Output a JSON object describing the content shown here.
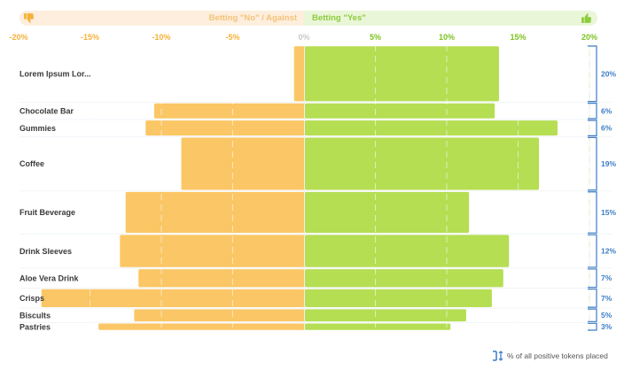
{
  "banner": {
    "against_label": "Betting \"No\" / Against",
    "for_label": "Betting \"Yes\""
  },
  "legend": {
    "label": "% of all positive tokens  placed"
  },
  "colors": {
    "against": "#fbc665",
    "for": "#b5de53",
    "share": "#3c7dc6",
    "tick_against": "#f5b13a",
    "tick_for": "#7cc31f"
  },
  "icons": {
    "against": "thumbs-down-icon",
    "for": "thumbs-up-icon",
    "legend": "bracket-icon"
  },
  "chart_data": {
    "type": "bar",
    "orientation": "diverging-horizontal",
    "xlim": [
      -20,
      20
    ],
    "x_ticks": [
      "-20%",
      "-15%",
      "-10%",
      "-5%",
      "0%",
      "5%",
      "10%",
      "15%",
      "20%"
    ],
    "x_tick_values": [
      -20,
      -15,
      -10,
      -5,
      0,
      5,
      10,
      15,
      20
    ],
    "categories": [
      "Lorem Ipsum Lor...",
      "Chocolate Bar",
      "Gummies",
      "Coffee",
      "Fruit Beverage",
      "Drink Sleeves",
      "Aloe Vera Drink",
      "Crisps",
      "Biscults",
      "Pastries"
    ],
    "series": [
      {
        "key": "against",
        "values": [
          -0.7,
          -10.5,
          -11.1,
          -8.6,
          -12.5,
          -12.9,
          -11.6,
          -18.4,
          -11.9,
          -14.4
        ]
      },
      {
        "key": "for",
        "values": [
          13.6,
          13.3,
          17.7,
          16.4,
          11.5,
          14.3,
          13.9,
          13.1,
          11.3,
          10.2
        ]
      },
      {
        "name": "% of all positive tokens  placed",
        "values": [
          20,
          6,
          6,
          19,
          15,
          12,
          7,
          7,
          5,
          3
        ]
      }
    ],
    "share_labels": [
      "20%",
      "6%",
      "6%",
      "19%",
      "15%",
      "12%",
      "7%",
      "7%",
      "5%",
      "3%"
    ],
    "grid": true
  }
}
